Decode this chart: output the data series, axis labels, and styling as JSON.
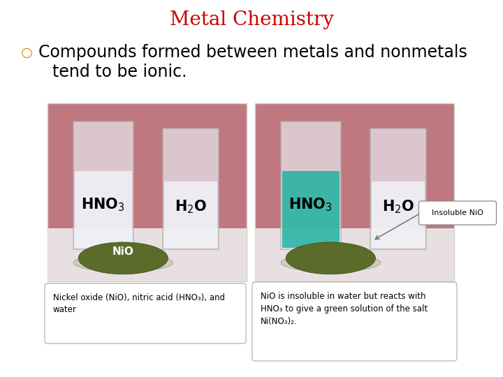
{
  "title": "Metal Chemistry",
  "title_color": "#cc0000",
  "bullet_symbol": "○",
  "bullet_color": "#cc8800",
  "bullet_text_line1": "Compounds formed between metals and nonmetals",
  "bullet_text_line2": "tend to be ionic.",
  "text_color": "#000000",
  "bg_color": "#ffffff",
  "title_fontsize": 20,
  "bullet_fontsize": 17,
  "caption_fontsize": 8.5,
  "left_caption": "Nickel oxide (NiO), nitric acid (HNO₃), and\nwater",
  "right_caption": "NiO is insoluble in water but reacts with\nHNO₃ to give a green solution of the salt\nNi(NO₃)₂.",
  "insoluble_label": "Insoluble NiO",
  "pink_bg": "#c07880",
  "pink_light": "#d4909a",
  "pink_wall": "#b86878",
  "green_powder": "#5a6b2a",
  "green_solution": "#20b2a0",
  "glass_color": "#e8e8f0",
  "white_liquid": "#f0f0f5",
  "photo_border": "#cccccc"
}
